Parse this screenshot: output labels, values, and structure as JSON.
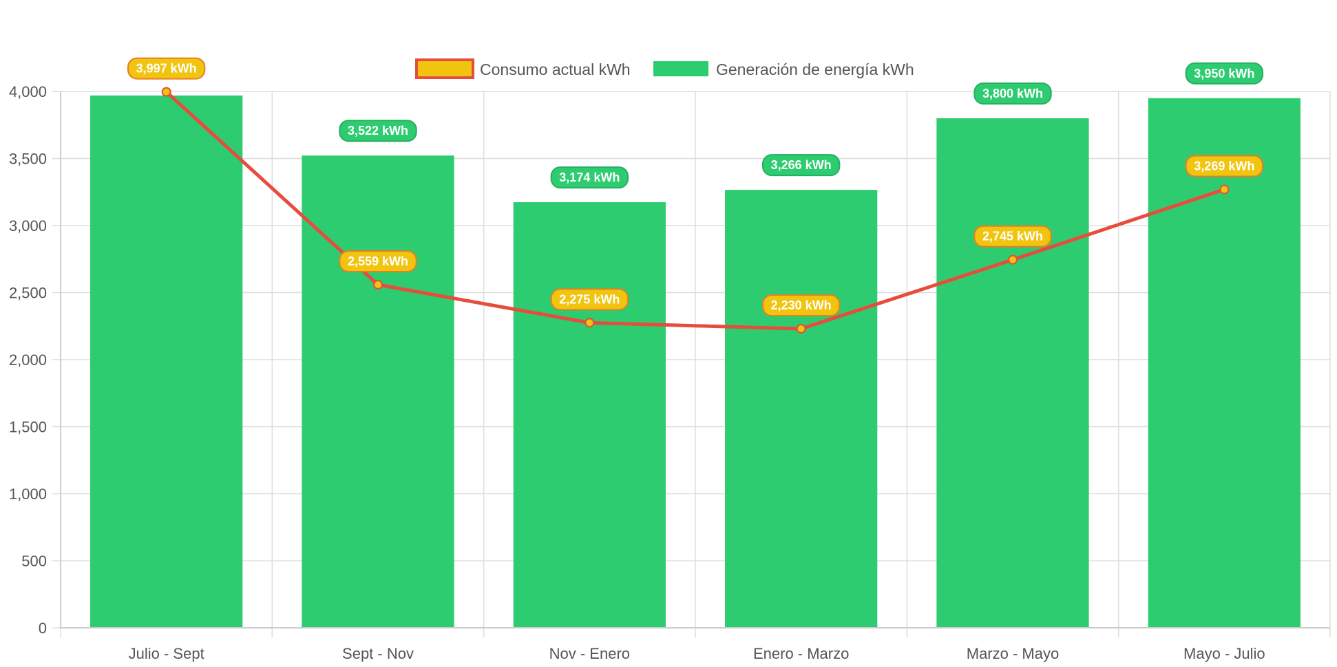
{
  "chart_data": {
    "type": "bar",
    "categories": [
      "Julio - Sept",
      "Sept - Nov",
      "Nov - Enero",
      "Enero - Marzo",
      "Marzo - Mayo",
      "Mayo - Julio"
    ],
    "series": [
      {
        "name": "Consumo actual kWh",
        "kind": "line",
        "values": [
          3997,
          2559,
          2275,
          2230,
          2745,
          3269
        ],
        "labels": [
          "3,997 kWh",
          "2,559 kWh",
          "2,275 kWh",
          "2,230 kWh",
          "2,745 kWh",
          "3,269 kWh"
        ],
        "color": "#e74c3c",
        "fill": "#f1c40f"
      },
      {
        "name": "Generación de energía kWh",
        "kind": "bar",
        "values": [
          3970,
          3522,
          3174,
          3266,
          3800,
          3950
        ],
        "labels": [
          "",
          "3,522 kWh",
          "3,174 kWh",
          "3,266 kWh",
          "3,800 kWh",
          "3,950 kWh"
        ],
        "color": "#2ecc71"
      }
    ],
    "ylim": [
      0,
      4000
    ],
    "yticks": [
      0,
      500,
      1000,
      1500,
      2000,
      2500,
      3000,
      3500,
      4000
    ],
    "ytick_labels": [
      "0",
      "500",
      "1,000",
      "1,500",
      "2,000",
      "2,500",
      "3,000",
      "3,500",
      "4,000"
    ],
    "grid": true,
    "legend_position": "top-center",
    "title": "",
    "xlabel": "",
    "ylabel": ""
  }
}
